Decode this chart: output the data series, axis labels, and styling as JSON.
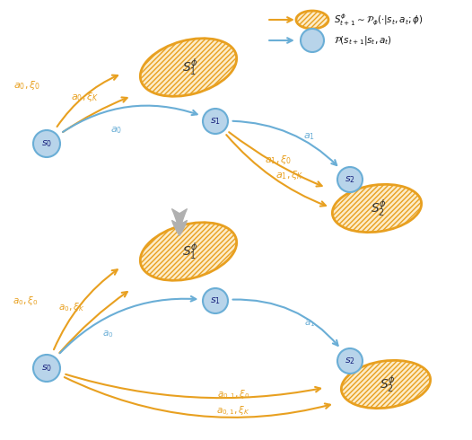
{
  "orange_color": "#E8A020",
  "blue_color": "#6aaed6",
  "gray_color": "#b0b0b0",
  "bg_color": "#ffffff",
  "node_blue_fill": "#b8d4ea",
  "node_blue_edge": "#6aaed6",
  "ellipse_orange_fill": "#fdecc8",
  "ellipse_orange_edge": "#E8A020"
}
